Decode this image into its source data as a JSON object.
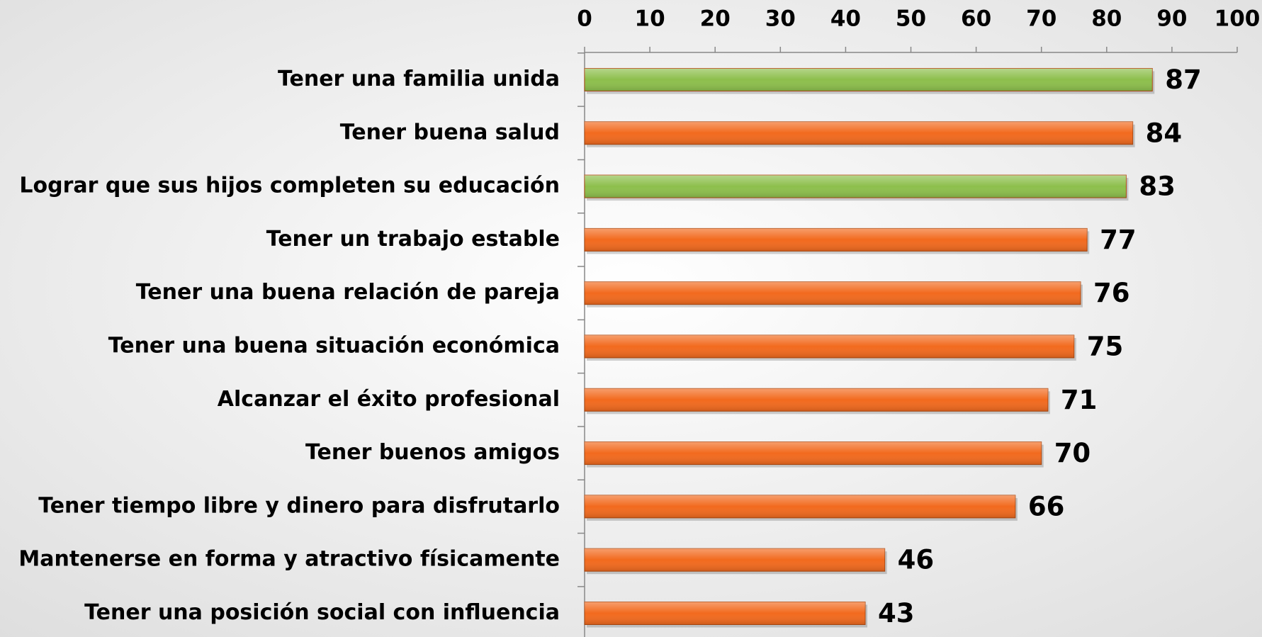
{
  "chart_data": {
    "type": "bar",
    "orientation": "horizontal",
    "categories": [
      "Tener una familia unida",
      "Tener buena salud",
      "Lograr que sus hijos completen su educación",
      "Tener un trabajo estable",
      "Tener una buena relación de pareja",
      "Tener una buena situación económica",
      "Alcanzar el éxito profesional",
      "Tener buenos amigos",
      "Tener tiempo libre y dinero para disfrutarlo",
      "Mantenerse en forma y atractivo físicamente",
      "Tener una posición social con influencia"
    ],
    "values": [
      87,
      84,
      83,
      77,
      76,
      75,
      71,
      70,
      66,
      46,
      43
    ],
    "colors": [
      "#8dbf4c",
      "#f26a1e",
      "#8dbf4c",
      "#f26a1e",
      "#f26a1e",
      "#f26a1e",
      "#f26a1e",
      "#f26a1e",
      "#f26a1e",
      "#f26a1e",
      "#f26a1e"
    ],
    "xlim": [
      0,
      100
    ],
    "xticks": [
      0,
      10,
      20,
      30,
      40,
      50,
      60,
      70,
      80,
      90,
      100
    ]
  }
}
